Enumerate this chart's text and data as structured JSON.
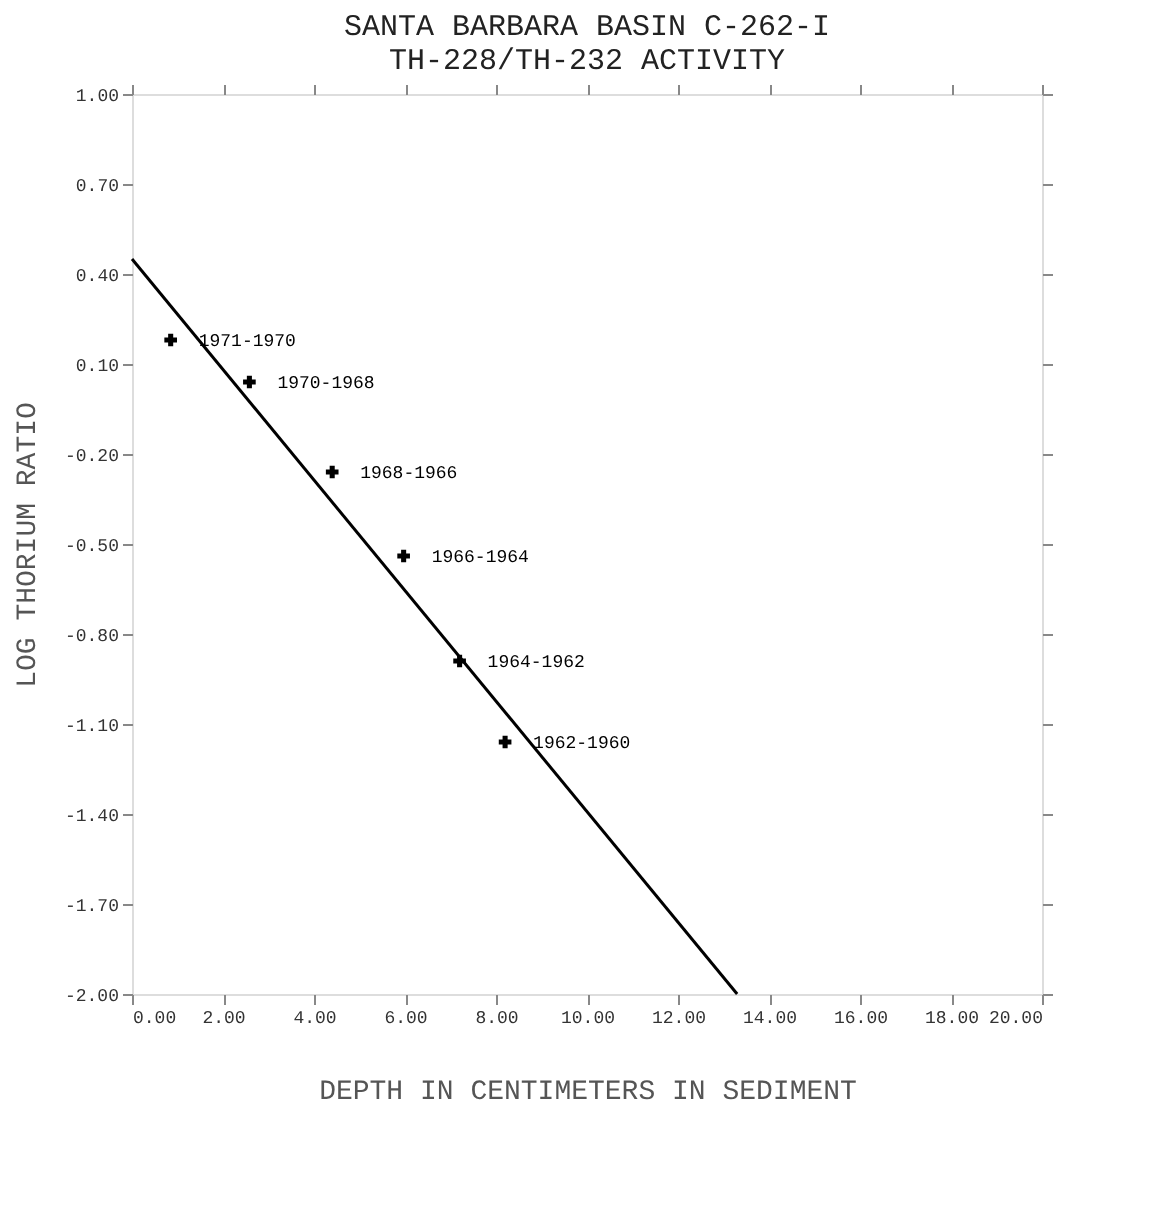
{
  "chart_data": {
    "type": "scatter",
    "title": [
      "SANTA BARBARA BASIN C-262-I",
      "TH-228/TH-232 ACTIVITY"
    ],
    "xlabel": "DEPTH IN CENTIMETERS IN SEDIMENT",
    "ylabel": "LOG THORIUM RATIO",
    "xlim": [
      0,
      20
    ],
    "xticks": [
      {
        "value": 0,
        "label": "0.00"
      },
      {
        "value": 2,
        "label": "2.00"
      },
      {
        "value": 4,
        "label": "4.00"
      },
      {
        "value": 6,
        "label": "6.00"
      },
      {
        "value": 8,
        "label": "8.00"
      },
      {
        "value": 10,
        "label": "10.00"
      },
      {
        "value": 12,
        "label": "12.00"
      },
      {
        "value": 14,
        "label": "14.00"
      },
      {
        "value": 16,
        "label": "16.00"
      },
      {
        "value": 18,
        "label": "18.00"
      },
      {
        "value": 20,
        "label": "20.00"
      }
    ],
    "ylim": [
      -2,
      1
    ],
    "yticks": [
      {
        "value": -2,
        "label": "-2.00"
      },
      {
        "value": -1.7,
        "label": "-1.70"
      },
      {
        "value": -1.4,
        "label": "-1.40"
      },
      {
        "value": -1.1,
        "label": "-1.10"
      },
      {
        "value": -0.8,
        "label": "-0.80"
      },
      {
        "value": -0.5,
        "label": "-0.50"
      },
      {
        "value": -0.2,
        "label": "-0.20"
      },
      {
        "value": 0.1,
        "label": "0.10"
      },
      {
        "value": 0.4,
        "label": "0.40"
      },
      {
        "value": 0.7,
        "label": "0.70"
      },
      {
        "value": 1.0,
        "label": "1.00"
      }
    ],
    "grid": false,
    "marker": "cross",
    "series": [
      {
        "type": "scatter",
        "color": "#000000",
        "x": [
          0.85,
          2.58,
          4.4,
          5.97,
          7.2,
          8.2
        ],
        "values": [
          0.18,
          0.04,
          -0.26,
          -0.54,
          -0.89,
          -1.16
        ]
      },
      {
        "type": "line",
        "color": "#000000",
        "line_style": "solid",
        "marker": "none",
        "x": [
          0,
          13.3
        ],
        "values": [
          0.45,
          -2.0
        ]
      }
    ],
    "annotations": [
      {
        "text": "1971-1970",
        "x": 0.85,
        "y": 0.18
      },
      {
        "text": "1970-1968",
        "x": 2.58,
        "y": 0.04
      },
      {
        "text": "1968-1966",
        "x": 4.4,
        "y": -0.26
      },
      {
        "text": "1966-1964",
        "x": 5.97,
        "y": -0.54
      },
      {
        "text": "1964-1962",
        "x": 7.2,
        "y": -0.89
      },
      {
        "text": "1962-1960",
        "x": 8.2,
        "y": -1.16
      }
    ]
  }
}
